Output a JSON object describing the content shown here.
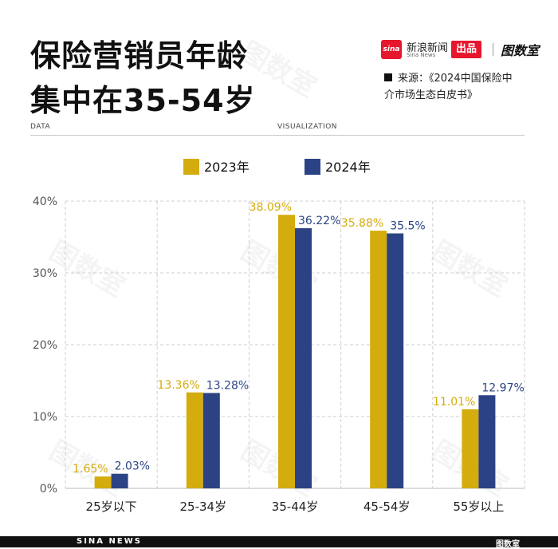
{
  "header": {
    "title_line1": "保险营销员年龄",
    "title_line2": "集中在35-54岁",
    "brand_name": "新浪新闻",
    "brand_sub": "Sina News",
    "brand_badge": "出品",
    "brand_logo2": "图数室",
    "logo_mark": "sina",
    "source_line1": "来源：《2024中国保险中",
    "source_line2": "介市场生态白皮书》",
    "data_label": "DATA",
    "viz_label": "VISUALIZATION"
  },
  "footer": {
    "text": "SINA NEWS",
    "mark": "图数室"
  },
  "colors": {
    "series_2023": "#D4AC0D",
    "series_2024": "#2B4384",
    "grid": "#cfcfcf",
    "axis_text": "#555555"
  },
  "chart_data": {
    "type": "bar",
    "categories": [
      "25岁以下",
      "25-34岁",
      "35-44岁",
      "45-54岁",
      "55岁以上"
    ],
    "series": [
      {
        "name": "2023年",
        "values": [
          1.65,
          13.36,
          38.09,
          35.88,
          11.01
        ],
        "labels": [
          "1.65%",
          "13.36%",
          "38.09%",
          "35.88%",
          "11.01%"
        ]
      },
      {
        "name": "2024年",
        "values": [
          2.03,
          13.28,
          36.22,
          35.5,
          12.97
        ],
        "labels": [
          "2.03%",
          "13.28%",
          "36.22%",
          "35.5%",
          "12.97%"
        ]
      }
    ],
    "yticks": [
      "0%",
      "10%",
      "20%",
      "30%",
      "40%"
    ],
    "ylim": [
      0,
      40
    ],
    "title": "保险营销员年龄集中在35-54岁",
    "xlabel": "",
    "ylabel": "",
    "grid": true,
    "legend": "top"
  }
}
